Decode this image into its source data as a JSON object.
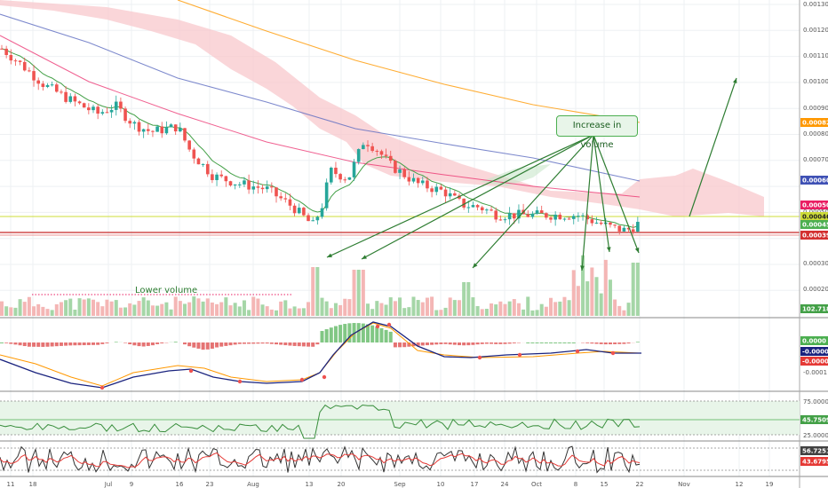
{
  "chart_data": {
    "type": "candlestick",
    "colors": {
      "up": "#26a69a",
      "down": "#ef5350",
      "cloud": "#f8c8cc",
      "ema_fast": "#4caf50",
      "ma_mid": "#e91e63",
      "ma_slow": "#3f51b5",
      "ma_long": "#ff9800",
      "annotation": "#2e7d32"
    },
    "x_ticks": [
      "11",
      "18",
      "Jul",
      "9",
      "16",
      "23",
      "Aug",
      "13",
      "20",
      "Sep",
      "10",
      "17",
      "24",
      "Oct",
      "8",
      "15",
      "22",
      "Nov",
      "12",
      "19"
    ],
    "price_axis": {
      "ticks": [
        "0.0013000",
        "0.0012000",
        "0.0011000",
        "0.0010000",
        "0.0009000",
        "0.0008000",
        "0.0007000",
        "0.0005000",
        "0.0003000",
        "0.0002000"
      ],
      "ylim": [
        0.00018,
        0.0013
      ]
    },
    "price_tags": [
      {
        "label": "0.0008283",
        "value": 0.0008283,
        "color": "#ff9800"
      },
      {
        "label": "0.0006014",
        "value": 0.0006014,
        "color": "#3f51b5"
      },
      {
        "label": "0.0005061",
        "value": 0.0005061,
        "color": "#e91e63"
      },
      {
        "label": "0.0004613",
        "value": 0.0004613,
        "color": "#cddc39"
      },
      {
        "label": "0.0004522",
        "value": 0.0004522,
        "color": "#4caf50"
      },
      {
        "label": "0.0003917",
        "value": 0.0003917,
        "color": "#d32f2f"
      }
    ],
    "volume_tag": "102.718K",
    "macd": {
      "ticks": [
        "-0.0001"
      ],
      "tags": [
        {
          "label": "0.0000",
          "color": "#4caf50"
        },
        {
          "label": "-0.0000",
          "color": "#1a237e"
        },
        {
          "label": "-0.0000",
          "color": "#e53935"
        }
      ]
    },
    "rsi": {
      "ticks": [
        "75.0000",
        "25.0000"
      ],
      "tag": "45.7509"
    },
    "stoch": {
      "tags": [
        "56.7251",
        "43.6795"
      ]
    },
    "annotations": {
      "callout": "Increase in volume",
      "low_volume": "Lower volume"
    }
  }
}
